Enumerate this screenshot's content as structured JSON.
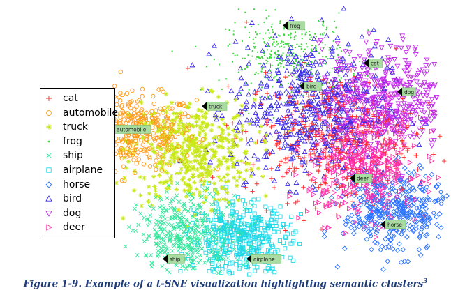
{
  "chart_data": {
    "type": "scatter",
    "title": "",
    "xlabel": "",
    "ylabel": "",
    "legend_position": "left",
    "grid": false,
    "classes": [
      {
        "name": "cat",
        "marker": "plus",
        "color": "#ff2a2a"
      },
      {
        "name": "automobile",
        "marker": "circle",
        "color": "#ff9a1a"
      },
      {
        "name": "truck",
        "marker": "star",
        "color": "#c8e81a"
      },
      {
        "name": "frog",
        "marker": "dot",
        "color": "#3cd83c"
      },
      {
        "name": "ship",
        "marker": "x",
        "color": "#2ee89a"
      },
      {
        "name": "airplane",
        "marker": "square",
        "color": "#1ed8e8"
      },
      {
        "name": "horse",
        "marker": "diamond",
        "color": "#2a72ff"
      },
      {
        "name": "bird",
        "marker": "triangle-up",
        "color": "#3a2ae8"
      },
      {
        "name": "dog",
        "marker": "triangle-down",
        "color": "#c02ae8"
      },
      {
        "name": "deer",
        "marker": "triangle-right",
        "color": "#ff2aa8"
      }
    ],
    "clusters": [
      {
        "class": "automobile",
        "center": [
          -2.6,
          0.25
        ],
        "spread": [
          0.55,
          0.32
        ],
        "density": 420
      },
      {
        "class": "truck",
        "center": [
          -1.55,
          -0.1
        ],
        "spread": [
          0.55,
          0.45
        ],
        "density": 480
      },
      {
        "class": "frog",
        "center": [
          0.15,
          1.6
        ],
        "spread": [
          0.55,
          0.35
        ],
        "density": 380
      },
      {
        "class": "bird",
        "center": [
          0.55,
          0.65
        ],
        "spread": [
          0.7,
          0.6
        ],
        "density": 520
      },
      {
        "class": "cat",
        "center": [
          0.9,
          0.2
        ],
        "spread": [
          0.75,
          0.55
        ],
        "density": 460
      },
      {
        "class": "dog",
        "center": [
          1.85,
          0.85
        ],
        "spread": [
          0.55,
          0.45
        ],
        "density": 480
      },
      {
        "class": "deer",
        "center": [
          1.55,
          -0.35
        ],
        "spread": [
          0.5,
          0.45
        ],
        "density": 420
      },
      {
        "class": "horse",
        "center": [
          2.05,
          -1.15
        ],
        "spread": [
          0.45,
          0.35
        ],
        "density": 380
      },
      {
        "class": "ship",
        "center": [
          -1.6,
          -1.5
        ],
        "spread": [
          0.45,
          0.35
        ],
        "density": 400
      },
      {
        "class": "airplane",
        "center": [
          -0.7,
          -1.6
        ],
        "spread": [
          0.45,
          0.32
        ],
        "density": 400
      }
    ],
    "cluster_labels": [
      {
        "text": "frog",
        "pos": [
          0.1,
          2.1
        ]
      },
      {
        "text": "cat",
        "pos": [
          1.55,
          1.45
        ]
      },
      {
        "text": "bird",
        "pos": [
          0.4,
          1.05
        ]
      },
      {
        "text": "dog",
        "pos": [
          2.15,
          0.95
        ]
      },
      {
        "text": "truck",
        "pos": [
          -1.35,
          0.7
        ]
      },
      {
        "text": "automobile",
        "pos": [
          -3.0,
          0.3
        ]
      },
      {
        "text": "deer",
        "pos": [
          1.3,
          -0.55
        ]
      },
      {
        "text": "horse",
        "pos": [
          1.85,
          -1.35
        ]
      },
      {
        "text": "ship",
        "pos": [
          -2.05,
          -1.95
        ]
      },
      {
        "text": "airplane",
        "pos": [
          -0.55,
          -1.95
        ]
      }
    ],
    "xlim": [
      -4.5,
      3.0
    ],
    "ylim": [
      -2.2,
      2.4
    ]
  },
  "caption": {
    "text": "Figure 1-9. Example of a t-SNE visualization highlighting semantic clusters",
    "superscript": "3"
  }
}
